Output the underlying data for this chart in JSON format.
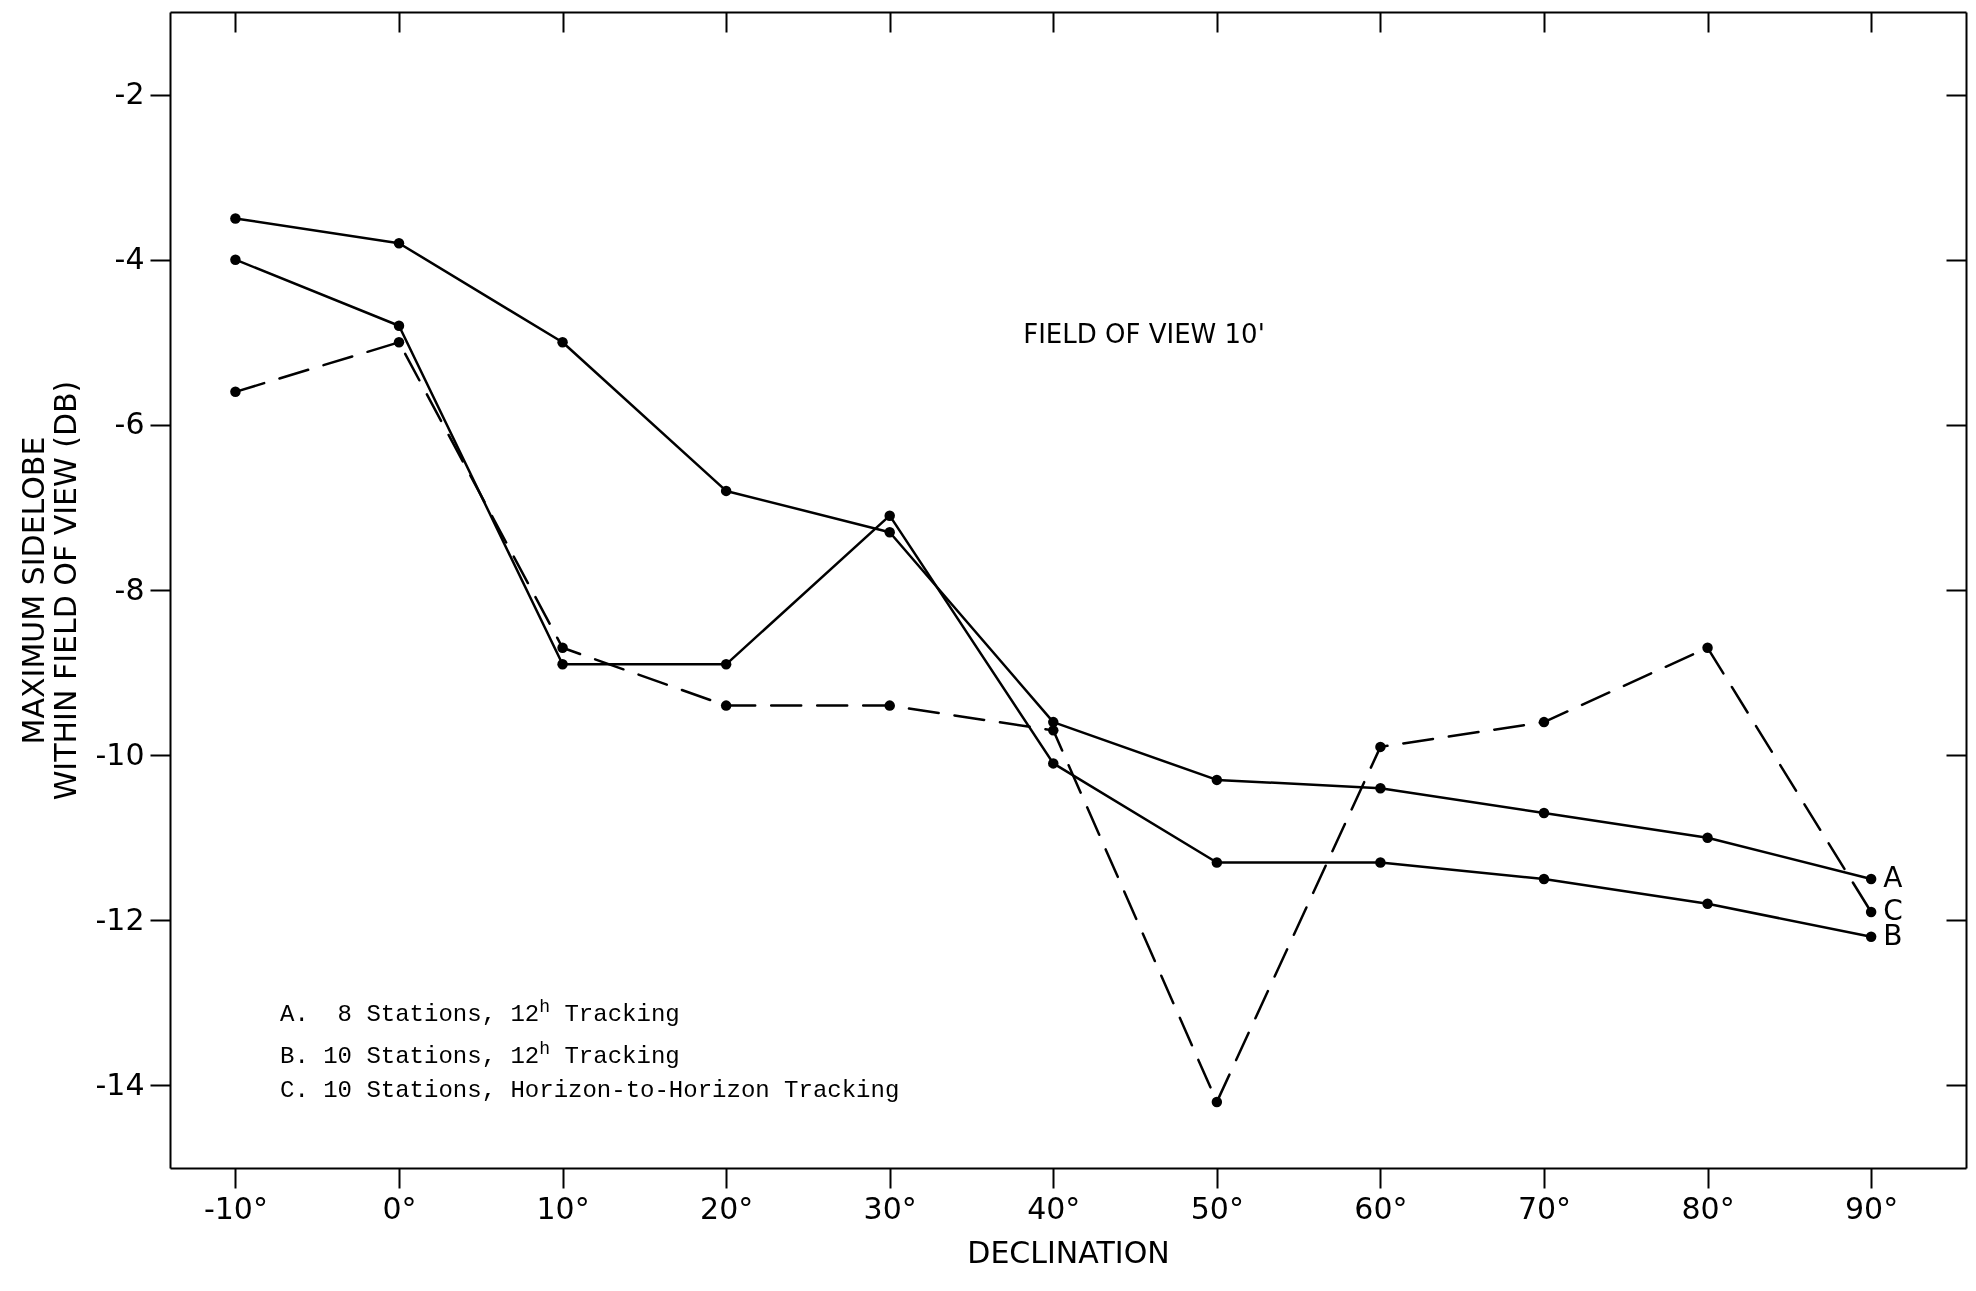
{
  "chart_data": {
    "type": "line",
    "xlabel": "DECLINATION",
    "ylabel": "MAXIMUM SIDELOBE\nWITHIN FIELD OF VIEW (DB)",
    "x": [
      -10,
      0,
      10,
      20,
      30,
      40,
      50,
      60,
      70,
      80,
      90
    ],
    "xlim": [
      -14,
      95.8
    ],
    "xticks": [
      {
        "value": -10,
        "label": "-10°"
      },
      {
        "value": 0,
        "label": "0°"
      },
      {
        "value": 10,
        "label": "10°"
      },
      {
        "value": 20,
        "label": "20°"
      },
      {
        "value": 30,
        "label": "30°"
      },
      {
        "value": 40,
        "label": "40°"
      },
      {
        "value": 50,
        "label": "50°"
      },
      {
        "value": 60,
        "label": "60°"
      },
      {
        "value": 70,
        "label": "70°"
      },
      {
        "value": 80,
        "label": "80°"
      },
      {
        "value": 90,
        "label": "90°"
      }
    ],
    "ylim": [
      -15,
      -1
    ],
    "yticks": [
      -2,
      -4,
      -6,
      -8,
      -10,
      -12,
      -14
    ],
    "marker": "circle",
    "series": [
      {
        "name": "A",
        "color": "#000000",
        "line_style": "solid",
        "values": [
          -3.5,
          -3.8,
          -5.0,
          -6.8,
          -7.3,
          -9.6,
          -10.3,
          -10.4,
          -10.7,
          -11.0,
          -11.5
        ]
      },
      {
        "name": "B",
        "color": "#000000",
        "line_style": "solid",
        "values": [
          -4.0,
          -4.8,
          -8.9,
          -8.9,
          -7.1,
          -10.1,
          -11.3,
          -11.3,
          -11.5,
          -11.8,
          -12.2
        ]
      },
      {
        "name": "C",
        "color": "#000000",
        "line_style": "dashed",
        "values": [
          -5.6,
          -5.0,
          -8.7,
          -9.4,
          -9.4,
          -9.7,
          -14.2,
          -9.9,
          -9.6,
          -8.7,
          -11.9
        ]
      }
    ],
    "annotations": [
      "FIELD OF VIEW 10'",
      "A.  8 Stations, 12$^{h}$ Tracking",
      "B. 10 Stations, 12$^{h}$ Tracking",
      "C. 10 Stations, Horizon-to-Horizon Tracking"
    ]
  }
}
